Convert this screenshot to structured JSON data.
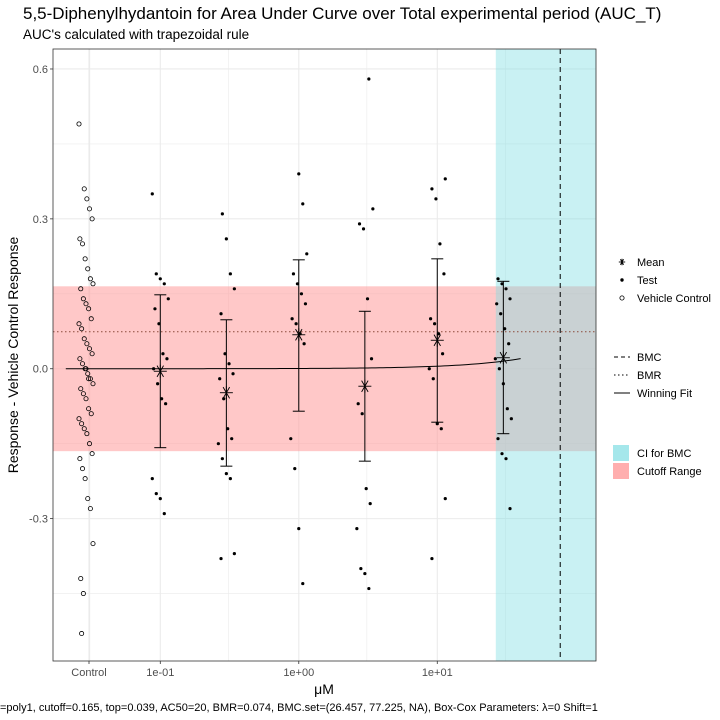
{
  "chart_data": {
    "type": "scatter",
    "title": "5,5-Diphenylhydantoin for Area Under Curve over Total experimental period (AUC_T)",
    "subtitle": "AUC's calculated with trapezoidal rule",
    "xlabel": "μM",
    "ylabel": "Response - Vehicle Control Response",
    "x_scale": "log10",
    "x_range": [
      0.0168,
      140
    ],
    "ylim": [
      -0.585,
      0.64
    ],
    "x_ticks": [
      {
        "label": "Control",
        "value": "control"
      },
      {
        "label": "1e-01",
        "value": 0.1
      },
      {
        "label": "1e+00",
        "value": 1
      },
      {
        "label": "1e+01",
        "value": 10
      }
    ],
    "y_ticks": [
      {
        "label": "0.6",
        "value": 0.6
      },
      {
        "label": "0.3",
        "value": 0.3
      },
      {
        "label": "0.0",
        "value": 0.0
      },
      {
        "label": "-0.3",
        "value": -0.3
      }
    ],
    "grid": true,
    "cutoff_range": [
      -0.165,
      0.165
    ],
    "bmr": 0.074,
    "bmc": 77.225,
    "ci_for_bmc": [
      26.457,
      140
    ],
    "winning_fit": {
      "model": "poly1",
      "intercept": 0,
      "slope": 0.000506,
      "x_max": 40
    },
    "vehicle_control": [
      0.49,
      -0.53,
      0.36,
      0.34,
      0.32,
      0.3,
      0.26,
      0.25,
      0.22,
      0.2,
      0.18,
      0.17,
      0.16,
      0.14,
      0.13,
      0.12,
      0.1,
      0.09,
      0.08,
      0.06,
      0.05,
      0.04,
      0.03,
      0.02,
      0.01,
      0.0,
      -0.01,
      -0.02,
      -0.03,
      -0.04,
      -0.05,
      -0.06,
      -0.08,
      -0.09,
      -0.1,
      -0.11,
      -0.12,
      -0.13,
      -0.15,
      -0.17,
      -0.18,
      -0.2,
      -0.22,
      -0.26,
      -0.28,
      -0.35,
      -0.42,
      -0.45,
      0.0,
      -0.02
    ],
    "doses": [
      {
        "x": 0.1,
        "mean": -0.005,
        "upper": 0.148,
        "lower": -0.158,
        "points": [
          0.35,
          0.19,
          0.18,
          0.17,
          0.14,
          0.12,
          0.09,
          0.03,
          0.02,
          0.0,
          -0.03,
          -0.06,
          -0.07,
          -0.22,
          -0.25,
          -0.26,
          -0.29
        ]
      },
      {
        "x": 0.3,
        "mean": -0.048,
        "upper": 0.098,
        "lower": -0.195,
        "points": [
          0.31,
          0.26,
          0.19,
          0.16,
          0.11,
          0.03,
          0.01,
          -0.01,
          -0.02,
          -0.06,
          -0.12,
          -0.14,
          -0.15,
          -0.18,
          -0.21,
          -0.22,
          -0.37,
          -0.38
        ]
      },
      {
        "x": 1,
        "mean": 0.068,
        "upper": 0.218,
        "lower": -0.085,
        "points": [
          0.39,
          0.33,
          0.23,
          0.19,
          0.17,
          0.15,
          0.13,
          0.1,
          0.09,
          0.07,
          0.05,
          -0.14,
          -0.2,
          -0.32,
          -0.43
        ]
      },
      {
        "x": 3,
        "mean": -0.035,
        "upper": 0.115,
        "lower": -0.185,
        "points": [
          0.58,
          0.32,
          0.29,
          0.28,
          0.14,
          0.02,
          -0.07,
          -0.09,
          -0.24,
          -0.27,
          -0.32,
          -0.4,
          -0.41,
          -0.44
        ]
      },
      {
        "x": 10,
        "mean": 0.057,
        "upper": 0.22,
        "lower": -0.107,
        "points": [
          0.38,
          0.36,
          0.34,
          0.25,
          0.19,
          0.1,
          0.09,
          0.07,
          0.03,
          0.0,
          -0.02,
          -0.11,
          -0.12,
          -0.26,
          -0.38
        ]
      },
      {
        "x": 30,
        "mean": 0.022,
        "upper": 0.175,
        "lower": -0.13,
        "points": [
          0.18,
          0.17,
          0.16,
          0.14,
          0.13,
          0.11,
          0.08,
          0.05,
          0.02,
          0.0,
          -0.03,
          -0.08,
          -0.1,
          -0.14,
          -0.17,
          -0.18,
          -0.28
        ]
      }
    ],
    "legend_groups": [
      [
        {
          "symbol": "asterisk",
          "label": "Mean"
        },
        {
          "symbol": "dot",
          "label": "Test"
        },
        {
          "symbol": "circle",
          "label": "Vehicle Control"
        }
      ],
      [
        {
          "symbol": "dashed",
          "label": "BMC"
        },
        {
          "symbol": "dotted",
          "label": "BMR"
        },
        {
          "symbol": "solid",
          "label": "Winning Fit"
        }
      ],
      [
        {
          "symbol": "cyan-box",
          "label": "CI for BMC"
        },
        {
          "symbol": "red-box",
          "label": "Cutoff Range"
        }
      ]
    ],
    "caption": "=poly1, cutoff=0.165, top=0.039, AC50=20, BMR=0.074, BMC.set=(26.457, 77.225, NA), Box-Cox Parameters: λ=0 Shift=1",
    "colors": {
      "ci": "#7fdde3",
      "cutoff": "#ff9a9a",
      "grid": "#ebebeb",
      "bmr_line": "#8b4a3a"
    }
  }
}
